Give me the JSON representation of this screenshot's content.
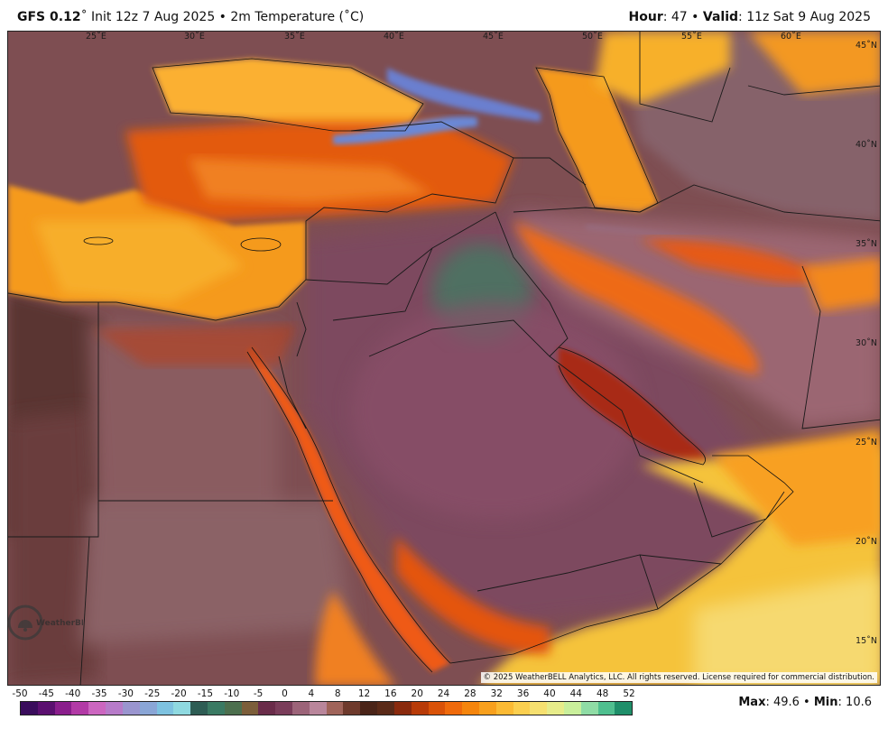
{
  "header": {
    "model": "GFS 0.12",
    "degree": "˚",
    "subtitle": "Init 12z 7 Aug 2025 • 2m Temperature (˚C)",
    "hour_label": "Hour",
    "hour_value": ": 47 •",
    "valid_label": "Valid",
    "valid_value": ": 11z Sat 9 Aug 2025"
  },
  "map": {
    "longitude_labels": [
      "25˚E",
      "30˚E",
      "35˚E",
      "40˚E",
      "45˚E",
      "50˚E",
      "55˚E",
      "60˚E"
    ],
    "latitude_labels": [
      "45˚N",
      "40˚N",
      "35˚N",
      "30˚N",
      "25˚N",
      "20˚N",
      "15˚N"
    ],
    "copyright": "© 2025 WeatherBELL Analytics, LLC. All rights reserved. License required for commercial distribution.",
    "logo_text": "WeatherBELL",
    "logo_icon": "bell-logo-icon"
  },
  "colorbar": {
    "labels": [
      "-50",
      "-45",
      "-40",
      "-35",
      "-30",
      "-25",
      "-20",
      "-15",
      "-10",
      "-5",
      "0",
      "4",
      "8",
      "12",
      "16",
      "20",
      "24",
      "28",
      "32",
      "36",
      "40",
      "44",
      "48",
      "52"
    ],
    "colors": [
      "#3a0d5c",
      "#5b1070",
      "#8a1e8c",
      "#b23aa6",
      "#cc66c0",
      "#b77bc9",
      "#9a95cf",
      "#8aa6d6",
      "#7ec2e0",
      "#8fd9e0",
      "#2e5d54",
      "#3a7a63",
      "#4c6f4e",
      "#7c5e3a",
      "#6a2c4a",
      "#7a3d5a",
      "#9c6479",
      "#b9869b",
      "#a0645a",
      "#6e3a2c",
      "#4a2418",
      "#5a2a18",
      "#8a2a0d",
      "#b83b08",
      "#d95208",
      "#ef6a0b",
      "#f5850c",
      "#f8a01d",
      "#fbba34",
      "#fbcf4f",
      "#f6e070",
      "#e7ec8a",
      "#c9ef9b",
      "#8fdca5",
      "#4fbf8f",
      "#1f8f6a"
    ],
    "max_label": "Max",
    "max_value": ": 49.6 •",
    "min_label": "Min",
    "min_value": ": 10.6"
  },
  "colors": {
    "hot_sea": "#f39c1e",
    "land_brown": "#5a3a34",
    "desert_mauve": "#8a5568",
    "coast_orange": "#e85a10",
    "cool_blue": "#5f7ed6"
  }
}
